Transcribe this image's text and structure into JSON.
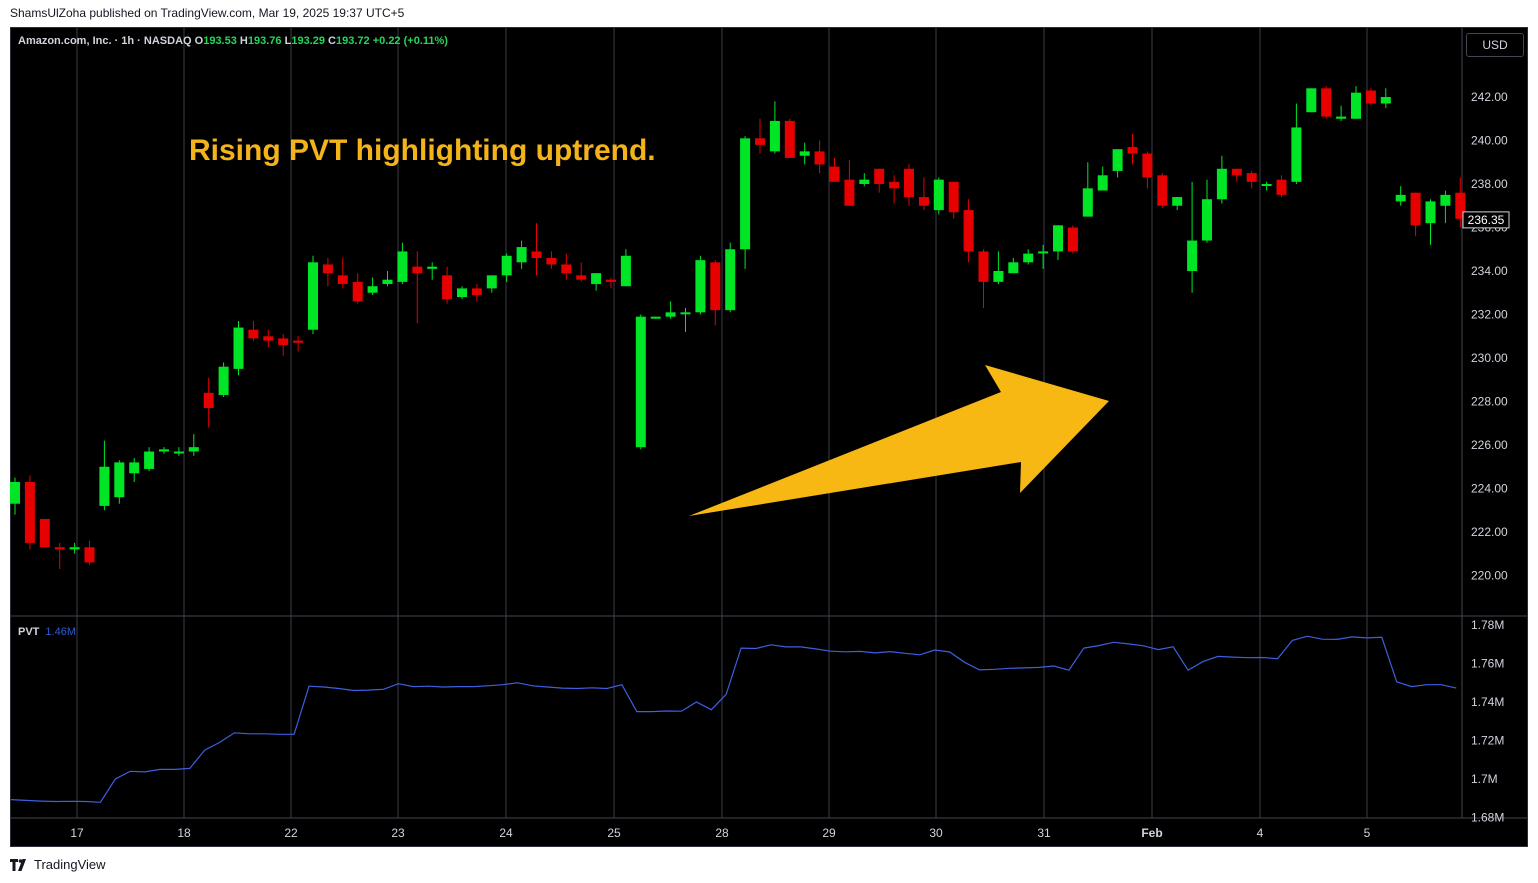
{
  "header": {
    "credit": "ShamsUlZoha published on TradingView.com, Mar 19, 2025 19:37 UTC+5"
  },
  "legend": {
    "symbol": "Amazon.com, Inc. · 1h · NASDAQ",
    "o_label": "O",
    "o_value": "193.53",
    "h_label": "H",
    "h_value": "193.76",
    "l_label": "L",
    "l_value": "193.29",
    "c_label": "C",
    "c_value": "193.72",
    "change": "+0.22 (+0.11%)"
  },
  "currency": "USD",
  "annotation": "Rising PVT highlighting uptrend.",
  "pvt_legend": {
    "name": "PVT",
    "value": "1.46M"
  },
  "footer": {
    "brand": "TradingView"
  },
  "colors": {
    "up": "#00e626",
    "down": "#e60000",
    "pvt": "#3d5fe0",
    "arrow": "#f7b814",
    "annotation": "#f5b31a"
  },
  "icons": {
    "brand_logo": "tradingview-logo-icon"
  },
  "chart_data": {
    "type": "candlestick",
    "price_axis": {
      "ticks": [
        "242.00",
        "240.00",
        "238.00",
        "236.00",
        "234.00",
        "232.00",
        "230.00",
        "228.00",
        "226.00",
        "224.00",
        "222.00",
        "220.00"
      ],
      "ylim": [
        219,
        243
      ],
      "last_price": "236.35"
    },
    "pvt_axis": {
      "ticks": [
        "1.78M",
        "1.76M",
        "1.74M",
        "1.72M",
        "1.7M",
        "1.68M"
      ],
      "ylim": [
        1.679,
        1.785
      ]
    },
    "x_ticks": [
      "17",
      "18",
      "22",
      "23",
      "24",
      "25",
      "28",
      "29",
      "30",
      "31",
      "Feb",
      "4",
      "5"
    ],
    "grid": true,
    "candles": [
      [
        223.3,
        224.3,
        222.8,
        224.5
      ],
      [
        224.3,
        221.5,
        221.2,
        224.6
      ],
      [
        222.6,
        221.3,
        221.3,
        222.6
      ],
      [
        221.3,
        221.2,
        220.3,
        221.5
      ],
      [
        221.2,
        221.3,
        221.0,
        221.5
      ],
      [
        221.3,
        220.6,
        220.5,
        221.6
      ],
      [
        223.2,
        225.0,
        223.0,
        226.2
      ],
      [
        223.6,
        225.2,
        223.3,
        225.3
      ],
      [
        224.7,
        225.2,
        224.3,
        225.4
      ],
      [
        224.9,
        225.7,
        224.8,
        225.9
      ],
      [
        225.7,
        225.8,
        225.6,
        225.9
      ],
      [
        225.7,
        225.7,
        225.5,
        225.9
      ],
      [
        225.7,
        225.9,
        225.5,
        226.5
      ],
      [
        228.4,
        227.7,
        226.8,
        229.1
      ],
      [
        228.3,
        229.6,
        228.2,
        229.8
      ],
      [
        229.5,
        231.4,
        229.2,
        231.7
      ],
      [
        231.3,
        230.9,
        230.8,
        231.7
      ],
      [
        231.0,
        230.8,
        230.5,
        231.3
      ],
      [
        230.9,
        230.6,
        230.1,
        231.1
      ],
      [
        230.8,
        230.7,
        230.3,
        231.0
      ],
      [
        231.3,
        234.4,
        231.1,
        234.7
      ],
      [
        234.3,
        233.9,
        233.3,
        234.6
      ],
      [
        233.8,
        233.4,
        233.2,
        234.6
      ],
      [
        233.5,
        232.6,
        232.5,
        233.9
      ],
      [
        233.0,
        233.3,
        232.9,
        233.7
      ],
      [
        233.4,
        233.6,
        233.3,
        234.0
      ],
      [
        233.5,
        234.9,
        233.4,
        235.3
      ],
      [
        234.2,
        233.9,
        231.6,
        234.9
      ],
      [
        234.1,
        234.2,
        233.6,
        234.4
      ],
      [
        233.8,
        232.7,
        232.5,
        234.2
      ],
      [
        232.8,
        233.2,
        232.7,
        233.3
      ],
      [
        233.2,
        232.9,
        232.6,
        233.4
      ],
      [
        233.2,
        233.8,
        233.0,
        233.8
      ],
      [
        233.8,
        234.7,
        233.5,
        234.8
      ],
      [
        234.4,
        235.1,
        234.1,
        235.4
      ],
      [
        234.9,
        234.6,
        233.8,
        236.2
      ],
      [
        234.6,
        234.3,
        234.1,
        234.9
      ],
      [
        234.3,
        233.9,
        233.6,
        234.8
      ],
      [
        233.8,
        233.6,
        233.5,
        234.4
      ],
      [
        233.4,
        233.9,
        233.1,
        233.9
      ],
      [
        233.6,
        233.5,
        233.2,
        233.7
      ],
      [
        233.3,
        234.7,
        233.3,
        235.0
      ],
      [
        225.9,
        231.9,
        225.8,
        232.0
      ],
      [
        231.9,
        231.9,
        231.8,
        231.9
      ],
      [
        231.9,
        232.1,
        231.8,
        232.6
      ],
      [
        232.1,
        232.1,
        231.2,
        232.3
      ],
      [
        232.1,
        234.5,
        232.0,
        234.7
      ],
      [
        234.4,
        232.2,
        231.5,
        234.5
      ],
      [
        232.2,
        235.0,
        232.1,
        235.3
      ],
      [
        235.0,
        240.1,
        234.1,
        240.2
      ],
      [
        240.1,
        239.8,
        239.4,
        241.0
      ],
      [
        239.5,
        240.9,
        239.4,
        241.8
      ],
      [
        240.9,
        239.2,
        239.2,
        241.0
      ],
      [
        239.3,
        239.5,
        238.9,
        239.9
      ],
      [
        239.5,
        238.9,
        238.5,
        240.0
      ],
      [
        238.8,
        238.1,
        238.1,
        239.2
      ],
      [
        238.2,
        237.0,
        237.0,
        239.1
      ],
      [
        238.0,
        238.2,
        237.9,
        238.5
      ],
      [
        238.7,
        238.0,
        237.6,
        238.7
      ],
      [
        238.1,
        237.8,
        237.1,
        238.4
      ],
      [
        238.7,
        237.4,
        237.0,
        238.9
      ],
      [
        237.4,
        237.0,
        236.8,
        238.3
      ],
      [
        236.8,
        238.2,
        236.6,
        238.3
      ],
      [
        238.1,
        236.7,
        236.4,
        238.1
      ],
      [
        236.8,
        234.9,
        234.4,
        237.3
      ],
      [
        234.9,
        233.5,
        232.3,
        235.0
      ],
      [
        233.5,
        234.0,
        233.4,
        234.9
      ],
      [
        233.9,
        234.4,
        233.9,
        234.6
      ],
      [
        234.4,
        234.8,
        234.3,
        235.0
      ],
      [
        234.9,
        234.9,
        234.1,
        235.2
      ],
      [
        234.9,
        236.1,
        234.5,
        236.1
      ],
      [
        236.0,
        234.9,
        234.8,
        236.1
      ],
      [
        236.5,
        237.8,
        236.5,
        239.0
      ],
      [
        237.7,
        238.4,
        237.7,
        238.8
      ],
      [
        238.6,
        239.6,
        238.3,
        239.6
      ],
      [
        239.7,
        239.4,
        238.9,
        240.3
      ],
      [
        239.4,
        238.3,
        237.8,
        239.5
      ],
      [
        238.4,
        237.0,
        236.9,
        238.5
      ],
      [
        237.0,
        237.4,
        236.8,
        237.4
      ],
      [
        234.0,
        235.4,
        233.0,
        238.1
      ],
      [
        235.4,
        237.3,
        235.3,
        238.2
      ],
      [
        237.3,
        238.7,
        237.1,
        239.3
      ],
      [
        238.7,
        238.4,
        238.1,
        238.7
      ],
      [
        238.5,
        238.1,
        237.8,
        238.6
      ],
      [
        238.0,
        238.0,
        237.7,
        238.1
      ],
      [
        238.2,
        237.5,
        237.4,
        238.4
      ],
      [
        238.1,
        240.6,
        238.0,
        241.7
      ],
      [
        241.3,
        242.4,
        241.3,
        242.4
      ],
      [
        242.4,
        241.1,
        241.0,
        242.5
      ],
      [
        241.0,
        241.1,
        240.9,
        241.6
      ],
      [
        241.0,
        242.2,
        241.0,
        242.5
      ],
      [
        242.3,
        241.7,
        241.6,
        242.4
      ],
      [
        241.7,
        242.0,
        241.5,
        242.4
      ],
      [
        237.2,
        237.5,
        237.0,
        237.9
      ],
      [
        237.6,
        236.1,
        235.6,
        237.6
      ],
      [
        236.2,
        237.2,
        235.2,
        237.3
      ],
      [
        237.0,
        237.5,
        236.2,
        237.7
      ],
      [
        237.6,
        236.4,
        236.0,
        238.3
      ]
    ],
    "pvt": [
      1.6893,
      1.6889,
      1.6885,
      1.6883,
      1.6884,
      1.6883,
      1.6879,
      1.7,
      1.704,
      1.7037,
      1.705,
      1.705,
      1.7055,
      1.715,
      1.719,
      1.724,
      1.7235,
      1.7235,
      1.7232,
      1.7232,
      1.7482,
      1.7478,
      1.747,
      1.746,
      1.7462,
      1.7466,
      1.7495,
      1.748,
      1.7482,
      1.7478,
      1.748,
      1.748,
      1.7484,
      1.749,
      1.75,
      1.7484,
      1.7478,
      1.7472,
      1.747,
      1.7474,
      1.747,
      1.749,
      1.735,
      1.735,
      1.7353,
      1.7352,
      1.74,
      1.736,
      1.744,
      1.768,
      1.7678,
      1.7697,
      1.7686,
      1.7686,
      1.7676,
      1.7664,
      1.7661,
      1.7663,
      1.7655,
      1.7662,
      1.7653,
      1.7645,
      1.767,
      1.766,
      1.7606,
      1.7567,
      1.757,
      1.7575,
      1.7577,
      1.758,
      1.7587,
      1.7565,
      1.768,
      1.7693,
      1.771,
      1.7702,
      1.7692,
      1.7672,
      1.7687,
      1.7565,
      1.761,
      1.7637,
      1.7633,
      1.763,
      1.7631,
      1.7625,
      1.772,
      1.7742,
      1.7726,
      1.7725,
      1.7738,
      1.7733,
      1.7736,
      1.7505,
      1.748,
      1.749,
      1.749,
      1.7472
    ]
  }
}
